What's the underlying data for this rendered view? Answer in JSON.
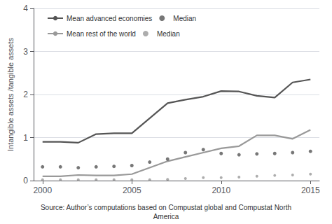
{
  "chart_data": {
    "type": "line",
    "ylabel": "Intangible assets /tangible assets",
    "annotations": [
      "Source: Author’s computations based on Compustat global and Compustat North\nAmerica"
    ],
    "x": [
      2000,
      2001,
      2002,
      2003,
      2004,
      2005,
      2006,
      2007,
      2008,
      2009,
      2010,
      2011,
      2012,
      2013,
      2014,
      2015
    ],
    "xlim": [
      1999.5,
      2015.5
    ],
    "xticks": [
      2000,
      2005,
      2010,
      2015
    ],
    "ylim": [
      0,
      4
    ],
    "yticks": [
      0,
      1,
      2,
      3,
      4
    ],
    "grid": true,
    "legend": "upper left",
    "series": [
      {
        "name": "Mean advanced economies",
        "type": "line",
        "line_style": "solid",
        "marker": "none",
        "color": "#555555",
        "values": [
          0.9,
          0.9,
          0.88,
          1.08,
          1.1,
          1.1,
          1.45,
          1.8,
          1.88,
          1.95,
          2.08,
          2.07,
          1.97,
          1.93,
          2.28,
          2.35
        ]
      },
      {
        "name": "Median",
        "type": "scatter",
        "line_style": "none",
        "marker": "dot",
        "color": "#555555",
        "values": [
          0.32,
          0.32,
          0.3,
          0.32,
          0.33,
          0.35,
          0.43,
          0.5,
          0.65,
          0.72,
          0.63,
          0.6,
          0.62,
          0.63,
          0.65,
          0.68
        ]
      },
      {
        "name": "Mean rest of the world",
        "type": "line",
        "line_style": "solid",
        "marker": "none",
        "color": "#999999",
        "values": [
          0.1,
          0.1,
          0.13,
          0.12,
          0.12,
          0.15,
          0.3,
          0.45,
          0.55,
          0.65,
          0.75,
          0.8,
          1.05,
          1.05,
          0.97,
          1.18
        ]
      },
      {
        "name": "Median",
        "type": "scatter",
        "line_style": "none",
        "marker": "dot",
        "color": "#999999",
        "values": [
          0.02,
          0.02,
          0.02,
          0.02,
          0.02,
          0.02,
          0.02,
          0.03,
          0.05,
          0.07,
          0.07,
          0.08,
          0.1,
          0.12,
          0.13,
          0.15
        ]
      }
    ]
  }
}
